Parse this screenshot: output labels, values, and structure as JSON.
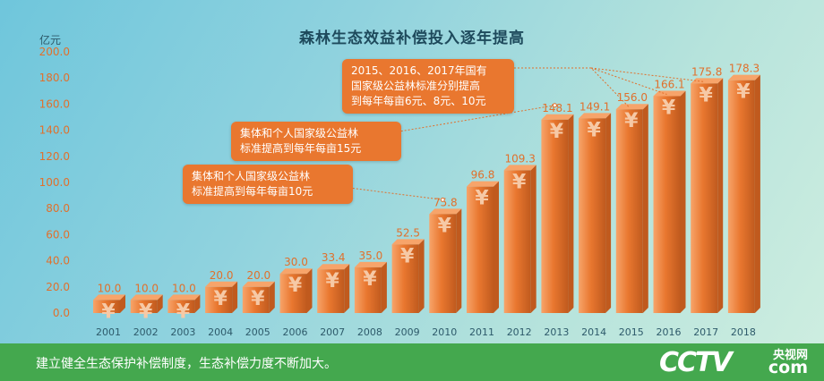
{
  "chart_data": {
    "type": "bar",
    "title": "森林生态效益补偿投入逐年提高",
    "ylabel": "亿元",
    "xlabel": "",
    "ylim": [
      0,
      200
    ],
    "yticks": [
      "0.0",
      "20.0",
      "40.0",
      "60.0",
      "80.0",
      "100.0",
      "120.0",
      "140.0",
      "160.0",
      "180.0",
      "200.0"
    ],
    "categories": [
      "2001",
      "2002",
      "2003",
      "2004",
      "2005",
      "2006",
      "2007",
      "2008",
      "2009",
      "2010",
      "2011",
      "2012",
      "2013",
      "2014",
      "2015",
      "2016",
      "2017",
      "2018"
    ],
    "values": [
      10.0,
      10.0,
      10.0,
      20.0,
      20.0,
      30.0,
      33.4,
      35.0,
      52.5,
      75.8,
      96.8,
      109.3,
      148.1,
      149.1,
      156.0,
      166.1,
      175.8,
      178.3
    ],
    "value_labels": [
      "10.0",
      "10.0",
      "10.0",
      "20.0",
      "20.0",
      "30.0",
      "33.4",
      "35.0",
      "52.5",
      "75.8",
      "96.8",
      "109.3",
      "148.1",
      "149.1",
      "156.0",
      "166.1",
      "175.8",
      "178.3"
    ],
    "bar_symbol": "¥",
    "grid": false,
    "colors": {
      "bar": "#e9772f",
      "bar_dark": "#c05a1e",
      "bar_light": "#f7a46a",
      "symbol": "#f6c9a6",
      "label": "#e0702c",
      "axis_text": "#2d5a6a"
    },
    "annotations": [
      {
        "text": "2015、2016、2017年国有国家级公益林标准分别提高到每年每亩6元、8元、10元",
        "lines": [
          "2015、2016、2017年国有",
          "国家级公益林标准分别提高",
          "到每年每亩6元、8元、10元"
        ]
      },
      {
        "text": "集体和个人国家级公益林标准提高到每年每亩15元",
        "lines": [
          "集体和个人国家级公益林",
          "标准提高到每年每亩15元"
        ]
      },
      {
        "text": "集体和个人国家级公益林标准提高到每年每亩10元",
        "lines": [
          "集体和个人国家级公益林",
          "标准提高到每年每亩10元"
        ]
      }
    ]
  },
  "footer": {
    "caption": "建立健全生态保护补偿制度，生态补偿力度不断加大。",
    "logo_main": "CCTV",
    "logo_sub1": "央视网",
    "logo_sub2": "com"
  }
}
